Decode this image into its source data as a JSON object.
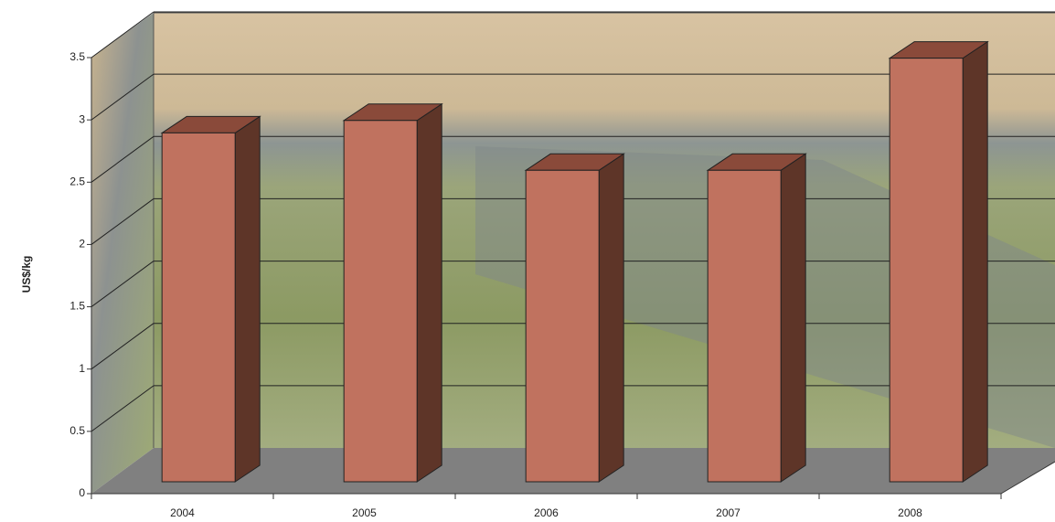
{
  "chart_data": {
    "type": "bar3d",
    "y_axis_label": "US$/kg",
    "categories": [
      "2004",
      "2005",
      "2006",
      "2007",
      "2008"
    ],
    "values": [
      2.8,
      2.9,
      2.5,
      2.5,
      3.4
    ],
    "color": "#c0725f",
    "ylim": [
      0,
      3.5
    ],
    "yticks": [
      0,
      0.5,
      1,
      1.5,
      2,
      2.5,
      3,
      3.5
    ],
    "grid": true
  }
}
